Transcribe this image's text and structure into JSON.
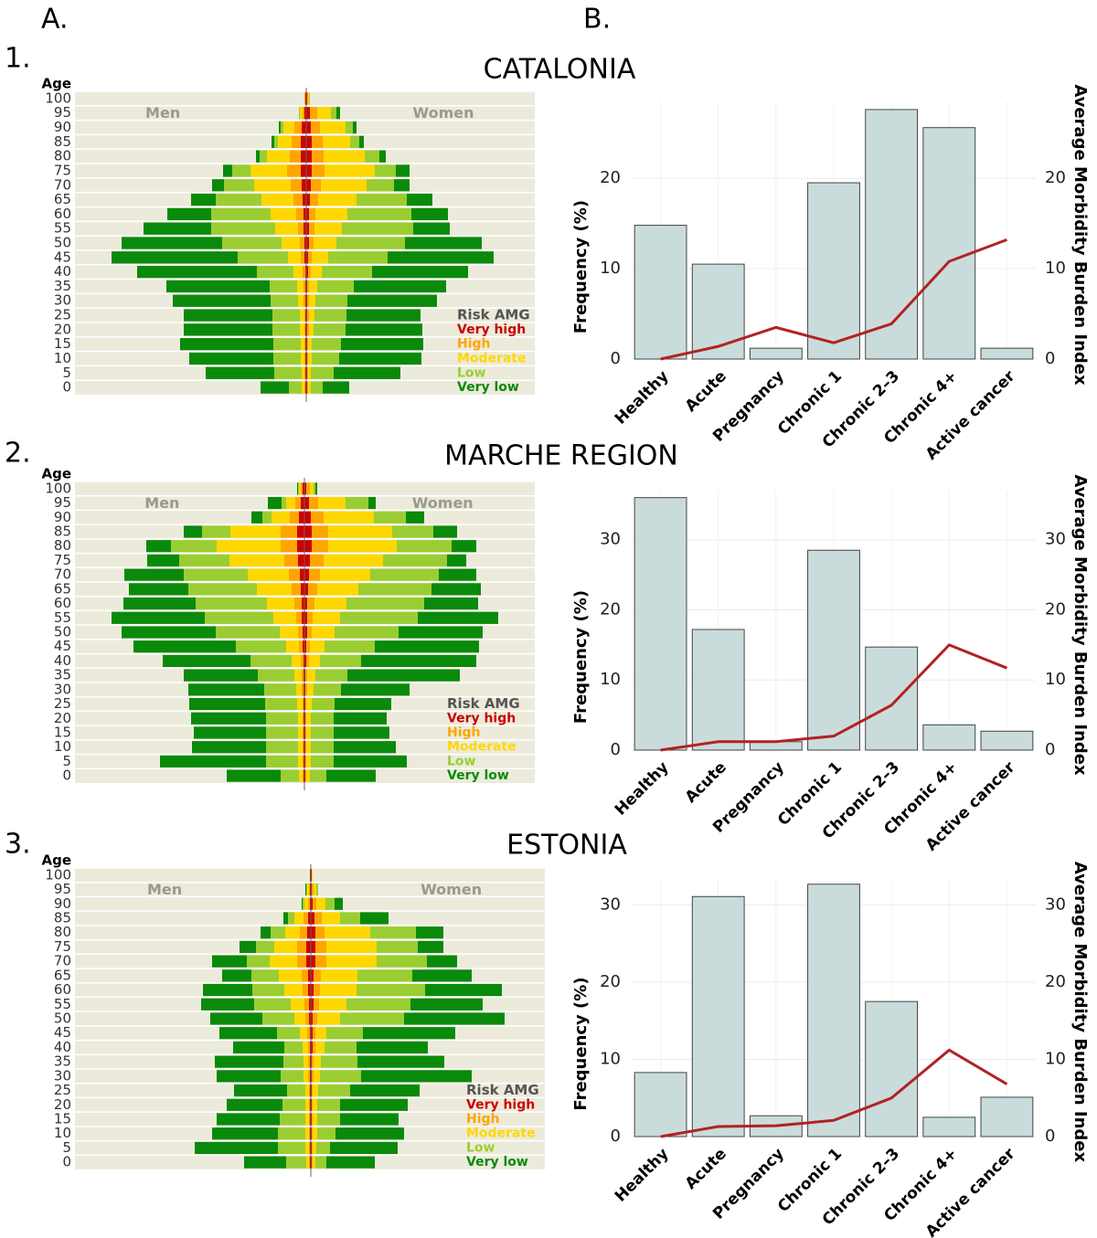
{
  "panel_labels": [
    "A.",
    "B."
  ],
  "row_labels": [
    "1.",
    "2.",
    "3."
  ],
  "region_titles": [
    "CATALONIA",
    "MARCHE REGION",
    "ESTONIA"
  ],
  "chart_data": [
    {
      "type": "pyramid",
      "y_label": "Age",
      "left_label": "Men",
      "right_label": "Women",
      "legend_title": "Risk AMG",
      "categories": [
        0,
        5,
        10,
        15,
        20,
        25,
        30,
        35,
        40,
        45,
        50,
        55,
        60,
        65,
        70,
        75,
        80,
        85,
        90,
        95,
        100
      ],
      "series": [
        {
          "name": "Very high",
          "color": "#cc0000",
          "men": [
            1,
            1,
            1,
            1,
            1,
            1,
            1,
            1,
            1,
            2,
            2,
            3,
            3,
            4,
            5,
            6,
            6,
            6,
            5,
            2,
            1
          ],
          "women": [
            1,
            1,
            1,
            1,
            1,
            1,
            1,
            1,
            2,
            2,
            3,
            3,
            3,
            4,
            5,
            6,
            6,
            6,
            5,
            4,
            1
          ]
        },
        {
          "name": "High",
          "color": "#ffa500",
          "men": [
            1,
            1,
            1,
            1,
            1,
            1,
            2,
            2,
            3,
            4,
            5,
            6,
            8,
            10,
            12,
            15,
            12,
            10,
            8,
            2,
            1
          ],
          "women": [
            1,
            1,
            1,
            1,
            2,
            2,
            2,
            2,
            3,
            4,
            5,
            6,
            7,
            9,
            11,
            14,
            13,
            12,
            10,
            8,
            1
          ]
        },
        {
          "name": "Moderate",
          "color": "#ffd700",
          "men": [
            3,
            3,
            4,
            4,
            5,
            5,
            6,
            7,
            10,
            14,
            20,
            25,
            28,
            35,
            40,
            40,
            25,
            15,
            12,
            3,
            0
          ],
          "women": [
            3,
            3,
            4,
            4,
            5,
            6,
            7,
            9,
            12,
            18,
            25,
            30,
            35,
            42,
            50,
            55,
            45,
            30,
            28,
            15,
            1
          ]
        },
        {
          "name": "Low",
          "color": "#9acd32",
          "men": [
            14,
            30,
            30,
            30,
            30,
            30,
            30,
            30,
            40,
            55,
            65,
            70,
            65,
            50,
            33,
            20,
            8,
            4,
            3,
            1,
            0
          ],
          "women": [
            13,
            25,
            30,
            32,
            35,
            35,
            35,
            40,
            55,
            65,
            75,
            78,
            70,
            55,
            30,
            23,
            16,
            10,
            8,
            6,
            1
          ]
        },
        {
          "name": "Very low",
          "color": "#0a8a0a",
          "men": [
            31,
            75,
            92,
            102,
            97,
            97,
            107,
            113,
            131,
            138,
            110,
            74,
            48,
            27,
            13,
            10,
            4,
            3,
            2,
            0,
            0
          ],
          "women": [
            29,
            73,
            90,
            90,
            84,
            81,
            98,
            101,
            105,
            116,
            84,
            40,
            40,
            28,
            17,
            15,
            7,
            5,
            4,
            4,
            0
          ]
        }
      ]
    },
    {
      "type": "bar_line",
      "categories": [
        "Healthy",
        "Acute",
        "Pregnancy",
        "Chronic 1",
        "Chronic 2–3",
        "Chronic 4+",
        "Active cancer"
      ],
      "y_label": "Frequency (%)",
      "y2_label": "Average Morbidity Burden Index",
      "ylim": [
        0,
        28.5
      ],
      "yticks": [
        0,
        10,
        20
      ],
      "y2lim": [
        0,
        28.5
      ],
      "y2ticks": [
        0,
        10,
        20
      ],
      "grid": true,
      "series": [
        {
          "type": "bar",
          "color": "#c9dcdb",
          "values": [
            14.8,
            10.5,
            1.2,
            19.5,
            27.6,
            25.6,
            1.2
          ]
        },
        {
          "type": "line",
          "axis": "y2",
          "color": "#b22222",
          "values": [
            0,
            1.4,
            3.5,
            1.8,
            3.9,
            10.8,
            13.2
          ]
        }
      ]
    },
    {
      "type": "pyramid",
      "y_label": "Age",
      "left_label": "Men",
      "right_label": "Women",
      "legend_title": "Risk AMG",
      "categories": [
        0,
        5,
        10,
        15,
        20,
        25,
        30,
        35,
        40,
        45,
        50,
        55,
        60,
        65,
        70,
        75,
        80,
        85,
        90,
        95,
        100
      ],
      "series": [
        {
          "name": "Very high",
          "color": "#cc0000",
          "men": [
            1,
            1,
            1,
            1,
            1,
            1,
            1,
            1,
            1,
            2,
            2,
            3,
            3,
            4,
            5,
            7,
            8,
            8,
            6,
            4,
            2
          ],
          "women": [
            1,
            1,
            1,
            1,
            1,
            1,
            1,
            1,
            2,
            2,
            3,
            3,
            3,
            4,
            5,
            6,
            8,
            8,
            7,
            5,
            2
          ]
        },
        {
          "name": "High",
          "color": "#ffa500",
          "men": [
            1,
            1,
            1,
            1,
            1,
            1,
            2,
            2,
            3,
            4,
            5,
            6,
            8,
            10,
            12,
            15,
            18,
            18,
            10,
            6,
            2
          ],
          "women": [
            1,
            1,
            1,
            1,
            1,
            1,
            2,
            2,
            3,
            4,
            5,
            6,
            8,
            10,
            12,
            15,
            18,
            18,
            14,
            10,
            4
          ]
        },
        {
          "name": "Moderate",
          "color": "#ffd700",
          "men": [
            4,
            5,
            5,
            5,
            5,
            6,
            6,
            8,
            10,
            14,
            20,
            25,
            30,
            38,
            45,
            60,
            70,
            55,
            20,
            10,
            2
          ],
          "women": [
            4,
            5,
            5,
            5,
            5,
            6,
            7,
            9,
            12,
            16,
            25,
            30,
            35,
            45,
            55,
            65,
            75,
            70,
            55,
            30,
            4
          ]
        },
        {
          "name": "Low",
          "color": "#9acd32",
          "men": [
            20,
            35,
            35,
            35,
            35,
            35,
            35,
            40,
            45,
            55,
            70,
            75,
            78,
            75,
            70,
            55,
            50,
            31,
            10,
            5,
            1
          ],
          "women": [
            18,
            25,
            25,
            25,
            25,
            25,
            30,
            35,
            45,
            55,
            70,
            85,
            85,
            80,
            75,
            70,
            60,
            45,
            35,
            25,
            2
          ]
        },
        {
          "name": "Very low",
          "color": "#0a8a0a",
          "men": [
            59,
            116,
            81,
            79,
            82,
            83,
            83,
            81,
            96,
            112,
            103,
            102,
            79,
            65,
            65,
            35,
            27,
            20,
            12,
            15,
            1
          ],
          "women": [
            54,
            80,
            68,
            61,
            58,
            62,
            75,
            123,
            126,
            114,
            92,
            88,
            59,
            54,
            41,
            21,
            27,
            26,
            20,
            8,
            2
          ]
        }
      ]
    },
    {
      "type": "bar_line",
      "categories": [
        "Healthy",
        "Acute",
        "Pregnancy",
        "Chronic 1",
        "Chronic 2–3",
        "Chronic 4+",
        "Active cancer"
      ],
      "y_label": "Frequency (%)",
      "y2_label": "Average Morbidity Burden Index",
      "ylim": [
        0,
        37
      ],
      "yticks": [
        0,
        10,
        20,
        30
      ],
      "y2lim": [
        0,
        37
      ],
      "y2ticks": [
        0,
        10,
        20,
        30
      ],
      "grid": true,
      "series": [
        {
          "type": "bar",
          "color": "#c9dcdb",
          "values": [
            36,
            17.2,
            1.2,
            28.5,
            14.7,
            3.6,
            2.7
          ]
        },
        {
          "type": "line",
          "axis": "y2",
          "color": "#b22222",
          "values": [
            0,
            1.2,
            1.2,
            2,
            6.4,
            15,
            11.7
          ]
        }
      ]
    },
    {
      "type": "pyramid",
      "y_label": "Age",
      "left_label": "Men",
      "right_label": "Women",
      "legend_title": "Risk AMG",
      "categories": [
        0,
        5,
        10,
        15,
        20,
        25,
        30,
        35,
        40,
        45,
        50,
        55,
        60,
        65,
        70,
        75,
        80,
        85,
        90,
        95,
        100
      ],
      "series": [
        {
          "name": "Very high",
          "color": "#cc0000",
          "men": [
            1,
            1,
            1,
            1,
            1,
            1,
            1,
            1,
            1,
            1,
            2,
            2,
            3,
            3,
            5,
            5,
            4,
            3,
            1,
            1,
            1
          ],
          "women": [
            1,
            1,
            1,
            1,
            1,
            1,
            1,
            1,
            2,
            2,
            2,
            3,
            3,
            3,
            5,
            5,
            5,
            4,
            2,
            1,
            1
          ]
        },
        {
          "name": "High",
          "color": "#ffa500",
          "men": [
            1,
            1,
            1,
            1,
            1,
            1,
            2,
            2,
            2,
            3,
            4,
            5,
            6,
            7,
            10,
            10,
            8,
            5,
            2,
            1,
            0
          ],
          "women": [
            1,
            1,
            1,
            1,
            1,
            1,
            2,
            2,
            3,
            3,
            5,
            6,
            7,
            8,
            12,
            12,
            10,
            8,
            4,
            2,
            0
          ]
        },
        {
          "name": "Moderate",
          "color": "#ffd700",
          "men": [
            3,
            4,
            4,
            4,
            4,
            4,
            5,
            5,
            6,
            8,
            12,
            15,
            20,
            25,
            30,
            25,
            16,
            10,
            4,
            2,
            0
          ],
          "women": [
            3,
            4,
            5,
            5,
            5,
            6,
            7,
            8,
            10,
            12,
            25,
            30,
            40,
            40,
            55,
            55,
            50,
            20,
            10,
            3,
            1
          ]
        },
        {
          "name": "Low",
          "color": "#9acd32",
          "men": [
            22,
            30,
            30,
            28,
            25,
            20,
            25,
            22,
            20,
            25,
            35,
            40,
            35,
            30,
            25,
            20,
            16,
            7,
            2,
            1,
            0
          ],
          "women": [
            12,
            15,
            20,
            25,
            25,
            35,
            45,
            40,
            35,
            40,
            70,
            70,
            75,
            60,
            55,
            45,
            50,
            22,
            10,
            2,
            0
          ]
        },
        {
          "name": "Very low",
          "color": "#0a8a0a",
          "men": [
            46,
            91,
            72,
            69,
            61,
            58,
            70,
            75,
            56,
            63,
            57,
            58,
            54,
            32,
            38,
            18,
            11,
            5,
            1,
            1,
            0
          ],
          "women": [
            53,
            74,
            75,
            64,
            74,
            76,
            121,
            95,
            78,
            101,
            110,
            79,
            84,
            65,
            33,
            28,
            30,
            31,
            9,
            0,
            0
          ]
        }
      ]
    },
    {
      "type": "bar_line",
      "categories": [
        "Healthy",
        "Acute",
        "Pregnancy",
        "Chronic 1",
        "Chronic 2–3",
        "Chronic 4+",
        "Active cancer"
      ],
      "y_label": "Frequency (%)",
      "y2_label": "Average Morbidity Burden Index",
      "ylim": [
        0,
        33.5
      ],
      "yticks": [
        0,
        10,
        20,
        30
      ],
      "y2lim": [
        0,
        33.5
      ],
      "y2ticks": [
        0,
        10,
        20,
        30
      ],
      "grid": true,
      "series": [
        {
          "type": "bar",
          "color": "#c9dcdb",
          "values": [
            8.3,
            31.1,
            2.7,
            32.7,
            17.5,
            2.5,
            5.1
          ]
        },
        {
          "type": "line",
          "axis": "y2",
          "color": "#b22222",
          "values": [
            0,
            1.3,
            1.4,
            2.1,
            5,
            11.2,
            6.8
          ]
        }
      ]
    }
  ]
}
